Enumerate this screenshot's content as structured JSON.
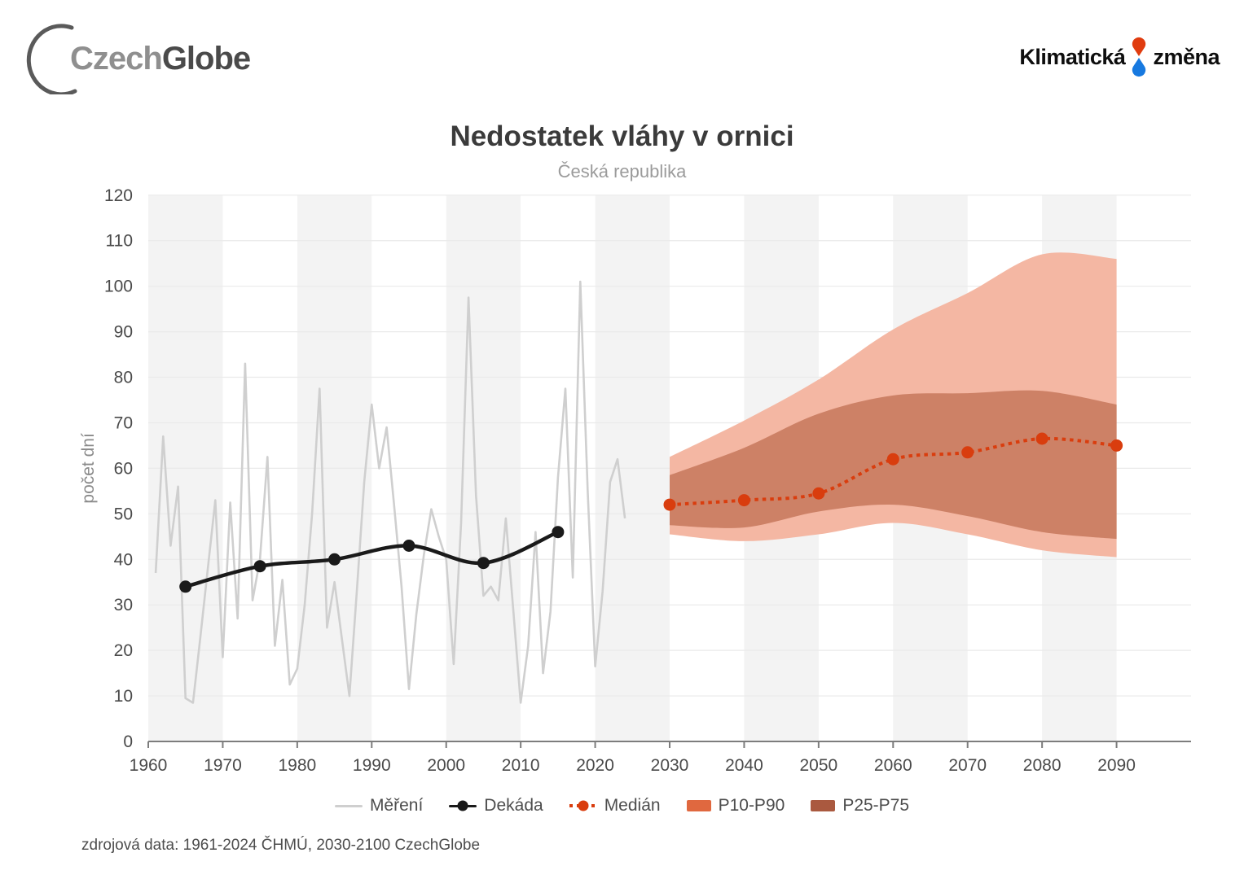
{
  "brand": {
    "czechglobe": {
      "part1": "Czech",
      "part2": "Globe"
    },
    "klimaticka": {
      "part1": "Klimatická",
      "part2": "změna"
    }
  },
  "chart": {
    "title": "Nedostatek vláhy v ornici",
    "subtitle": "Česká republika",
    "ylabel": "počet dní",
    "source": "zdrojová data: 1961-2024 ČHMÚ, 2030-2100 CzechGlobe"
  },
  "legend": {
    "items": [
      {
        "id": "mereni",
        "label": "Měření"
      },
      {
        "id": "dekada",
        "label": "Dekáda"
      },
      {
        "id": "median",
        "label": "Medián"
      },
      {
        "id": "p10p90",
        "label": "P10-P90"
      },
      {
        "id": "p25p75",
        "label": "P25-P75"
      }
    ]
  },
  "chart_data": {
    "type": "line",
    "title": "Nedostatek vláhy v ornici",
    "subtitle": "Česká republika",
    "ylabel": "počet dní",
    "ylim": [
      0,
      120
    ],
    "xlim": [
      1960,
      2100
    ],
    "y_ticks": [
      0,
      10,
      20,
      30,
      40,
      50,
      60,
      70,
      80,
      90,
      100,
      110,
      120
    ],
    "x_ticks": [
      1960,
      1970,
      1980,
      1990,
      2000,
      2010,
      2020,
      2030,
      2040,
      2050,
      2060,
      2070,
      2080,
      2090
    ],
    "stripe_decades": [
      1960,
      1980,
      2000,
      2020,
      2040,
      2060,
      2080
    ],
    "series": [
      {
        "name": "Měření",
        "x": [
          1961,
          1962,
          1963,
          1964,
          1965,
          1966,
          1967,
          1968,
          1969,
          1970,
          1971,
          1972,
          1973,
          1974,
          1975,
          1976,
          1977,
          1978,
          1979,
          1980,
          1981,
          1982,
          1983,
          1984,
          1985,
          1986,
          1987,
          1988,
          1989,
          1990,
          1991,
          1992,
          1993,
          1994,
          1995,
          1996,
          1997,
          1998,
          1999,
          2000,
          2001,
          2002,
          2003,
          2004,
          2005,
          2006,
          2007,
          2008,
          2009,
          2010,
          2011,
          2012,
          2013,
          2014,
          2015,
          2016,
          2017,
          2018,
          2019,
          2020,
          2021,
          2022,
          2023,
          2024
        ],
        "values": [
          37,
          67,
          43,
          56,
          9.5,
          8.5,
          23,
          38,
          53,
          18.5,
          52.5,
          27,
          83,
          31,
          40,
          62.5,
          21,
          35.5,
          12.5,
          16,
          30,
          50,
          77.5,
          25,
          35,
          22.5,
          10,
          33,
          57,
          74,
          60,
          69,
          52,
          34,
          11.5,
          28,
          41,
          51,
          45,
          40,
          17,
          48,
          97.5,
          54,
          32,
          34,
          31,
          49,
          29,
          8.5,
          21,
          46,
          15,
          28.5,
          58,
          77.5,
          36,
          101,
          55,
          16.5,
          33,
          57,
          62,
          49
        ]
      },
      {
        "name": "Dekáda",
        "x": [
          1965,
          1975,
          1985,
          1995,
          2005,
          2015
        ],
        "values": [
          34,
          38.5,
          40,
          43,
          39.2,
          46
        ]
      },
      {
        "name": "Medián",
        "x": [
          2030,
          2040,
          2050,
          2060,
          2070,
          2080,
          2090
        ],
        "values": [
          52,
          53,
          54.5,
          62,
          63.5,
          66.5,
          65
        ]
      },
      {
        "name": "P10-P90",
        "x": [
          2030,
          2040,
          2050,
          2060,
          2070,
          2080,
          2090
        ],
        "upper": [
          62.5,
          70.5,
          79.5,
          90.5,
          98.5,
          107,
          106
        ],
        "lower": [
          45.5,
          44,
          45.5,
          48,
          45.5,
          42,
          40.5
        ]
      },
      {
        "name": "P25-P75",
        "x": [
          2030,
          2040,
          2050,
          2060,
          2070,
          2080,
          2090
        ],
        "upper": [
          58.5,
          64.5,
          72,
          76,
          76.5,
          77,
          74
        ],
        "lower": [
          47.5,
          47,
          50.5,
          52,
          49.5,
          46,
          44.5
        ]
      }
    ],
    "colors": {
      "measurement": "#cfcfcf",
      "decade": "#1a1a1a",
      "median": "#d93d0e",
      "band_light": "#f4b7a3",
      "band_dark": "#cd8166",
      "legend_band_light": "#e0683f",
      "legend_band_dark": "#aa593f",
      "stripe": "#f3f3f3",
      "grid": "#eaeaea",
      "axis": "#7d7d7d",
      "tick_text": "#4a4a4a",
      "axis_label": "#8a8a8a",
      "logo_red": "#e03c0f",
      "logo_blue": "#1779e0"
    },
    "legend_position": "bottom",
    "grid": true
  }
}
